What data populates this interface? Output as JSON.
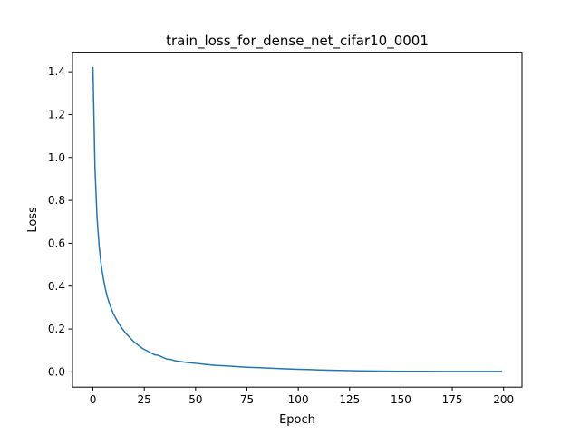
{
  "chart_data": {
    "type": "line",
    "title": "train_loss_for_dense_net_cifar10_0001",
    "xlabel": "Epoch",
    "ylabel": "Loss",
    "xlim": [
      -9.95,
      208.95
    ],
    "ylim": [
      -0.071,
      1.491
    ],
    "xticks": [
      0,
      25,
      50,
      75,
      100,
      125,
      150,
      175,
      200
    ],
    "yticks": [
      0.0,
      0.2,
      0.4,
      0.6,
      0.8,
      1.0,
      1.2,
      1.4
    ],
    "xtick_labels": [
      "0",
      "25",
      "50",
      "75",
      "100",
      "125",
      "150",
      "175",
      "200"
    ],
    "ytick_labels": [
      "0.0",
      "0.2",
      "0.4",
      "0.6",
      "0.8",
      "1.0",
      "1.2",
      "1.4"
    ],
    "grid": false,
    "series": [
      {
        "color": "#1f77b4",
        "x": [
          0,
          1,
          2,
          3,
          4,
          5,
          6,
          7,
          8,
          9,
          10,
          12,
          14,
          16,
          18,
          20,
          22,
          24,
          26,
          28,
          30,
          32,
          34,
          36,
          38,
          40,
          45,
          50,
          55,
          60,
          65,
          70,
          75,
          80,
          85,
          90,
          95,
          100,
          105,
          110,
          115,
          120,
          125,
          130,
          140,
          150,
          160,
          170,
          180,
          190,
          199
        ],
        "y": [
          1.42,
          0.95,
          0.72,
          0.59,
          0.5,
          0.44,
          0.39,
          0.35,
          0.32,
          0.295,
          0.27,
          0.235,
          0.205,
          0.18,
          0.16,
          0.14,
          0.125,
          0.11,
          0.1,
          0.09,
          0.08,
          0.077,
          0.068,
          0.06,
          0.058,
          0.052,
          0.045,
          0.04,
          0.035,
          0.03,
          0.028,
          0.025,
          0.022,
          0.02,
          0.018,
          0.016,
          0.014,
          0.012,
          0.011,
          0.009,
          0.008,
          0.007,
          0.006,
          0.005,
          0.004,
          0.003,
          0.003,
          0.002,
          0.002,
          0.002,
          0.002
        ]
      }
    ]
  }
}
